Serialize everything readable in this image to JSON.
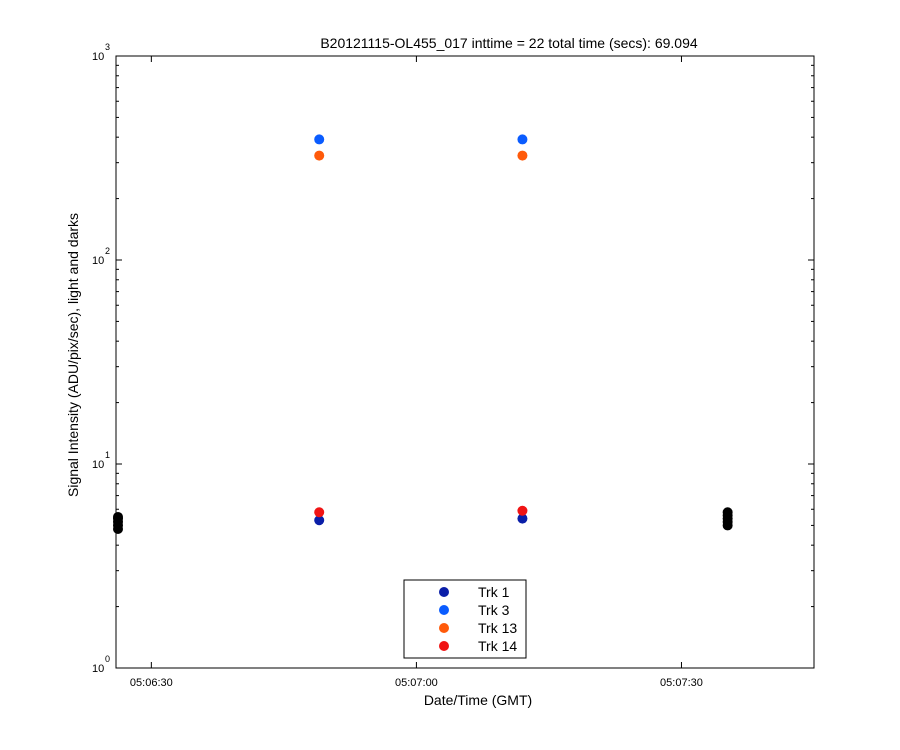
{
  "chart_data": {
    "type": "scatter",
    "title": "B20121115-OL455_017 inttime = 22 total time (secs): 69.094",
    "xlabel": "Date/Time (GMT)",
    "ylabel": "Signal Intensity (ADU/pix/sec), light and darks",
    "xlim": [
      "05:06:26",
      "05:07:45"
    ],
    "ylim": [
      1,
      1000
    ],
    "yscale": "log",
    "x_ticks": [
      "05:06:30",
      "05:07:00",
      "05:07:30"
    ],
    "y_ticks": [
      {
        "base": "10",
        "exp": "0"
      },
      {
        "base": "10",
        "exp": "1"
      },
      {
        "base": "10",
        "exp": "2"
      },
      {
        "base": "10",
        "exp": "3"
      }
    ],
    "grid": false,
    "legend_position": "bottom-center",
    "series": [
      {
        "name": "Trk 1",
        "color": "#0a1ea8",
        "points": [
          {
            "x": "05:06:49",
            "y": 5.3
          },
          {
            "x": "05:07:12",
            "y": 5.4
          }
        ]
      },
      {
        "name": "Trk 3",
        "color": "#0a5cff",
        "points": [
          {
            "x": "05:06:49",
            "y": 390
          },
          {
            "x": "05:07:12",
            "y": 390
          }
        ]
      },
      {
        "name": "Trk 13",
        "color": "#ff5a0a",
        "points": [
          {
            "x": "05:06:49",
            "y": 325
          },
          {
            "x": "05:07:12",
            "y": 325
          }
        ]
      },
      {
        "name": "Trk 14",
        "color": "#f01414",
        "points": [
          {
            "x": "05:06:49",
            "y": 5.8
          },
          {
            "x": "05:07:12",
            "y": 5.9
          }
        ]
      }
    ],
    "dark_points": {
      "color": "#000000",
      "points": [
        {
          "x": "05:06:26",
          "y": 4.8
        },
        {
          "x": "05:06:26",
          "y": 5.0
        },
        {
          "x": "05:06:26",
          "y": 5.2
        },
        {
          "x": "05:06:26",
          "y": 5.4
        },
        {
          "x": "05:06:26",
          "y": 5.5
        },
        {
          "x": "05:07:35",
          "y": 5.0
        },
        {
          "x": "05:07:35",
          "y": 5.2
        },
        {
          "x": "05:07:35",
          "y": 5.4
        },
        {
          "x": "05:07:35",
          "y": 5.6
        },
        {
          "x": "05:07:35",
          "y": 5.8
        }
      ]
    }
  }
}
